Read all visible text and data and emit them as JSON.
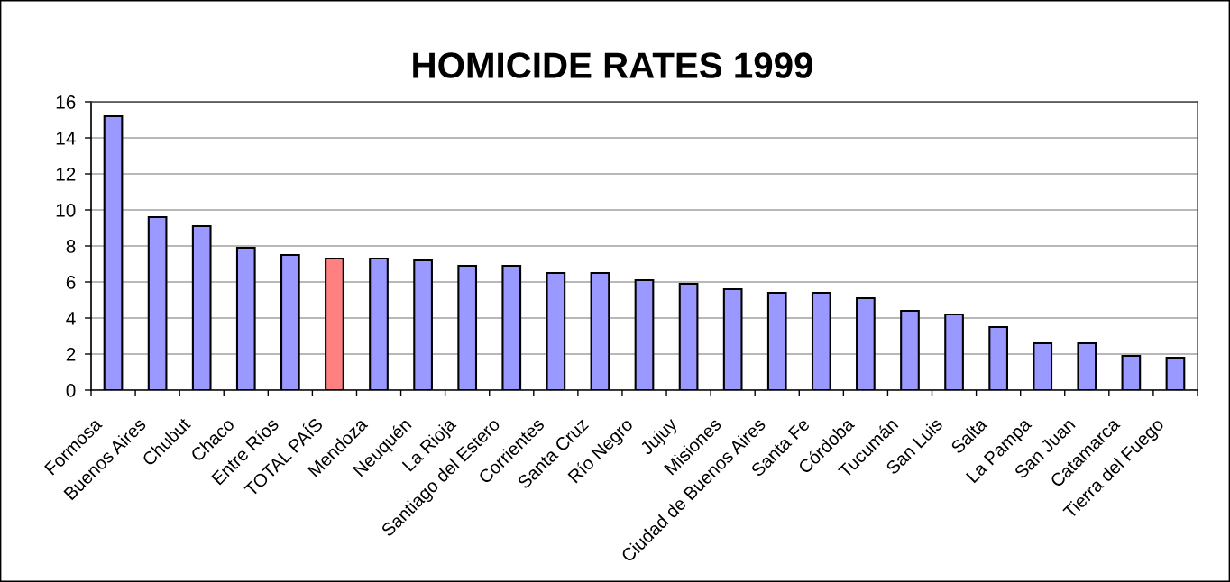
{
  "chart_data": {
    "type": "bar",
    "title": "HOMICIDE RATES 1999",
    "categories": [
      "Formosa",
      "Buenos Aires",
      "Chubut",
      "Chaco",
      "Entre Ríos",
      "TOTAL PAÍS",
      "Mendoza",
      "Neuquén",
      "La Rioja",
      "Santiago del Estero",
      "Corrientes",
      "Santa Cruz",
      "Río Negro",
      "Jujuy",
      "Misiones",
      "Ciudad de Buenos Aires",
      "Santa Fe",
      "Córdoba",
      "Tucumán",
      "San Luis",
      "Salta",
      "La Pampa",
      "San Juan",
      "Catamarca",
      "Tierra del Fuego"
    ],
    "values": [
      15.2,
      9.6,
      9.1,
      7.9,
      7.5,
      7.3,
      7.3,
      7.2,
      6.9,
      6.9,
      6.5,
      6.5,
      6.1,
      5.9,
      5.6,
      5.4,
      5.4,
      5.1,
      4.4,
      4.2,
      3.5,
      2.6,
      2.6,
      1.9,
      1.8
    ],
    "colors": [
      "#9999ff",
      "#9999ff",
      "#9999ff",
      "#9999ff",
      "#9999ff",
      "#ff8080",
      "#9999ff",
      "#9999ff",
      "#9999ff",
      "#9999ff",
      "#9999ff",
      "#9999ff",
      "#9999ff",
      "#9999ff",
      "#9999ff",
      "#9999ff",
      "#9999ff",
      "#9999ff",
      "#9999ff",
      "#9999ff",
      "#9999ff",
      "#9999ff",
      "#9999ff",
      "#9999ff",
      "#9999ff"
    ],
    "ylim": [
      0,
      16
    ],
    "yticks": [
      0,
      2,
      4,
      6,
      8,
      10,
      12,
      14,
      16
    ],
    "grid": "y"
  }
}
